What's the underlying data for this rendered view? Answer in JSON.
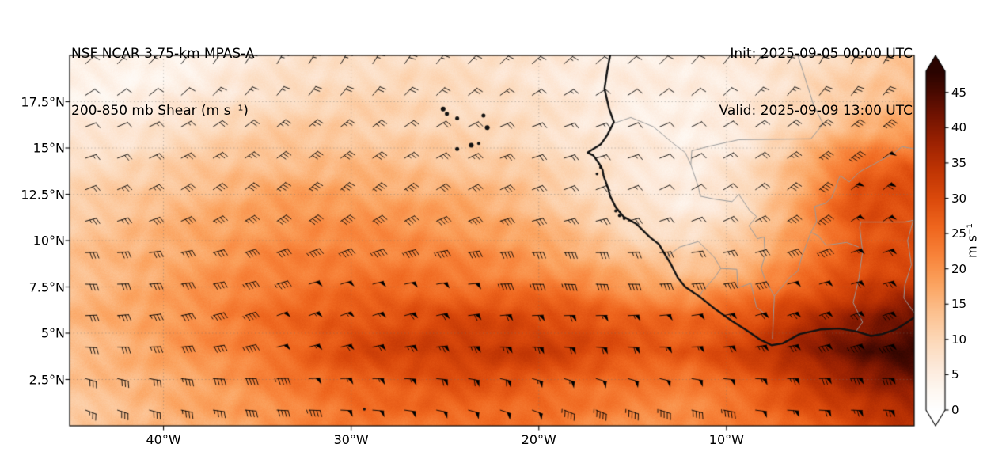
{
  "header": {
    "title_line1": "NSF NCAR 3.75-km MPAS-A",
    "title_line2": "200-850 mb Shear (m s⁻¹)",
    "init_label": "Init: 2025-09-05 00:00 UTC",
    "valid_label": "Valid: 2025-09-09 13:00 UTC"
  },
  "chart_data": {
    "type": "heatmap",
    "title": "200-850 mb Shear (m s⁻¹)",
    "xlabel": "",
    "ylabel": "",
    "lon_range": [
      -45,
      0
    ],
    "lat_range": [
      0,
      20
    ],
    "x_ticks": [
      {
        "value": -40,
        "label": "40°W"
      },
      {
        "value": -30,
        "label": "30°W"
      },
      {
        "value": -20,
        "label": "20°W"
      },
      {
        "value": -10,
        "label": "10°W"
      }
    ],
    "y_ticks": [
      {
        "value": 17.5,
        "label": "17.5°N"
      },
      {
        "value": 15,
        "label": "15°N"
      },
      {
        "value": 12.5,
        "label": "12.5°N"
      },
      {
        "value": 10,
        "label": "10°N"
      },
      {
        "value": 7.5,
        "label": "7.5°N"
      },
      {
        "value": 5,
        "label": "5°N"
      },
      {
        "value": 2.5,
        "label": "2.5°N"
      }
    ],
    "colorbar": {
      "label": "m s⁻¹",
      "ticks": [
        0,
        5,
        10,
        15,
        20,
        25,
        30,
        35,
        40,
        45
      ],
      "range": [
        0,
        48
      ],
      "extend": "both"
    },
    "colormap": [
      [
        0,
        "#ffffff"
      ],
      [
        3,
        "#fef7f0"
      ],
      [
        6,
        "#fdeadb"
      ],
      [
        10,
        "#fcd8b8"
      ],
      [
        14,
        "#fcc08e"
      ],
      [
        18,
        "#fba35f"
      ],
      [
        22,
        "#f8833a"
      ],
      [
        26,
        "#ef661e"
      ],
      [
        30,
        "#db4a0c"
      ],
      [
        34,
        "#c03504"
      ],
      [
        38,
        "#9c2202"
      ],
      [
        42,
        "#6f1301"
      ],
      [
        45,
        "#4a0a01"
      ],
      [
        48,
        "#2a0400"
      ]
    ],
    "grid": {
      "lons": [
        -45,
        -42,
        -39,
        -36,
        -33,
        -30,
        -27,
        -24,
        -21,
        -18,
        -15,
        -12,
        -9,
        -6,
        -3,
        0
      ],
      "lats": [
        20,
        18,
        16,
        14,
        12,
        10,
        8,
        6,
        4,
        2,
        0
      ],
      "values": [
        [
          4,
          3,
          4,
          6,
          7,
          8,
          9,
          8,
          7,
          6,
          5,
          5,
          6,
          8,
          11,
          13
        ],
        [
          4,
          4,
          5,
          7,
          9,
          10,
          10,
          9,
          8,
          6,
          5,
          5,
          6,
          9,
          12,
          15
        ],
        [
          6,
          6,
          9,
          11,
          12,
          12,
          11,
          10,
          9,
          7,
          5,
          4,
          6,
          11,
          16,
          18
        ],
        [
          9,
          10,
          12,
          14,
          15,
          15,
          14,
          13,
          12,
          9,
          7,
          5,
          8,
          16,
          26,
          28
        ],
        [
          11,
          13,
          15,
          17,
          19,
          19,
          18,
          17,
          15,
          11,
          7,
          5,
          9,
          18,
          30,
          30
        ],
        [
          13,
          15,
          17,
          19,
          21,
          21,
          21,
          20,
          18,
          15,
          11,
          9,
          12,
          20,
          28,
          29
        ],
        [
          14,
          16,
          18,
          21,
          23,
          24,
          24,
          23,
          22,
          20,
          17,
          15,
          18,
          24,
          30,
          32
        ],
        [
          15,
          17,
          20,
          23,
          26,
          28,
          29,
          30,
          30,
          29,
          26,
          25,
          28,
          34,
          38,
          42
        ],
        [
          14,
          16,
          19,
          22,
          26,
          30,
          32,
          33,
          33,
          31,
          29,
          28,
          32,
          38,
          44,
          47
        ],
        [
          13,
          15,
          17,
          19,
          23,
          26,
          27,
          28,
          27,
          25,
          23,
          22,
          26,
          31,
          36,
          40
        ],
        [
          12,
          14,
          16,
          18,
          21,
          23,
          24,
          25,
          24,
          22,
          21,
          20,
          23,
          27,
          31,
          34
        ]
      ]
    },
    "wind_barbs": {
      "spacing_deg": 1.7,
      "units": "m s⁻¹",
      "half_barb": 2.5,
      "full_barb": 5,
      "pennant": 25
    },
    "coastline": [
      [
        -16.2,
        20
      ],
      [
        -16.35,
        19.2
      ],
      [
        -16.5,
        18.2
      ],
      [
        -16.25,
        17.1
      ],
      [
        -16.0,
        16.4
      ],
      [
        -16.35,
        15.7
      ],
      [
        -16.7,
        15.2
      ],
      [
        -17.4,
        14.75
      ],
      [
        -17.1,
        14.6
      ],
      [
        -16.75,
        14.1
      ],
      [
        -16.6,
        13.8
      ],
      [
        -16.55,
        13.5
      ],
      [
        -16.3,
        12.8
      ],
      [
        -16.2,
        12.4
      ],
      [
        -15.9,
        11.8
      ],
      [
        -15.5,
        11.3
      ],
      [
        -14.8,
        10.9
      ],
      [
        -14.1,
        10.2
      ],
      [
        -13.6,
        9.8
      ],
      [
        -13.25,
        9.2
      ],
      [
        -13.0,
        8.8
      ],
      [
        -12.6,
        8.0
      ],
      [
        -12.2,
        7.5
      ],
      [
        -11.4,
        6.95
      ],
      [
        -10.6,
        6.3
      ],
      [
        -9.7,
        5.65
      ],
      [
        -9.0,
        5.2
      ],
      [
        -8.2,
        4.65
      ],
      [
        -7.6,
        4.35
      ],
      [
        -7.0,
        4.45
      ],
      [
        -6.1,
        4.95
      ],
      [
        -5.0,
        5.2
      ],
      [
        -4.0,
        5.25
      ],
      [
        -3.1,
        5.1
      ],
      [
        -2.3,
        4.85
      ],
      [
        -1.7,
        4.95
      ],
      [
        -1.0,
        5.2
      ],
      [
        -0.5,
        5.5
      ],
      [
        0,
        5.85
      ]
    ],
    "islands": [
      [
        -25.1,
        17.1,
        3
      ],
      [
        -24.9,
        16.85,
        2.5
      ],
      [
        -24.35,
        16.6,
        2.5
      ],
      [
        -22.95,
        16.75,
        2.5
      ],
      [
        -22.75,
        16.1,
        3
      ],
      [
        -23.6,
        15.15,
        3
      ],
      [
        -24.35,
        14.95,
        2.5
      ],
      [
        -23.2,
        15.25,
        2
      ],
      [
        -15.9,
        11.6,
        2
      ],
      [
        -15.7,
        11.35,
        2
      ],
      [
        -15.45,
        11.2,
        2
      ],
      [
        -29.3,
        0.9,
        1.8
      ],
      [
        -16.7,
        13.95,
        2
      ],
      [
        -16.9,
        13.6,
        1.8
      ]
    ],
    "borders": [
      [
        [
          -16.1,
          16.3
        ],
        [
          -15.1,
          16.65
        ],
        [
          -13.9,
          16.15
        ],
        [
          -12.9,
          15.3
        ],
        [
          -12.2,
          14.75
        ],
        [
          -11.9,
          14.1
        ],
        [
          -11.5,
          12.9
        ],
        [
          -11.4,
          12.4
        ]
      ],
      [
        [
          -6.2,
          20
        ],
        [
          -5.35,
          17.3
        ],
        [
          -4.85,
          16.3
        ],
        [
          -5.5,
          15.5
        ],
        [
          -9.35,
          15.45
        ],
        [
          -10.9,
          15.1
        ],
        [
          -11.85,
          14.85
        ],
        [
          -11.9,
          14.1
        ]
      ],
      [
        [
          -11.4,
          12.4
        ],
        [
          -10.7,
          12.25
        ],
        [
          -9.7,
          12.1
        ],
        [
          -9.35,
          12.5
        ],
        [
          -8.75,
          11.6
        ],
        [
          -8.4,
          11.3
        ],
        [
          -8.8,
          10.8
        ],
        [
          -8.35,
          10.1
        ],
        [
          -8.0,
          10.2
        ],
        [
          -7.95,
          9.2
        ],
        [
          -8.15,
          8.5
        ],
        [
          -7.95,
          7.9
        ],
        [
          -7.45,
          7.0
        ],
        [
          -7.5,
          5.9
        ],
        [
          -7.55,
          4.7
        ]
      ],
      [
        [
          -13.3,
          9.05
        ],
        [
          -12.5,
          9.65
        ],
        [
          -11.5,
          9.95
        ],
        [
          -10.65,
          9.1
        ],
        [
          -10.3,
          8.5
        ],
        [
          -10.6,
          8.05
        ],
        [
          -11.3,
          7.25
        ],
        [
          -11.45,
          6.95
        ]
      ],
      [
        [
          -10.3,
          8.5
        ],
        [
          -9.45,
          8.45
        ],
        [
          -9.4,
          7.45
        ],
        [
          -8.7,
          7.7
        ],
        [
          -8.4,
          6.4
        ],
        [
          -7.9,
          6.0
        ]
      ],
      [
        [
          -3.1,
          5.1
        ],
        [
          -2.75,
          5.6
        ],
        [
          -3.25,
          6.65
        ],
        [
          -2.95,
          7.95
        ],
        [
          -2.75,
          9.4
        ],
        [
          -2.9,
          10.7
        ],
        [
          -2.85,
          11.0
        ],
        [
          -1.6,
          11.0
        ],
        [
          -0.5,
          11.0
        ],
        [
          -0.05,
          11.1
        ]
      ],
      [
        [
          0.0,
          6.1
        ],
        [
          -0.55,
          6.9
        ],
        [
          -0.5,
          7.6
        ],
        [
          -0.15,
          8.7
        ],
        [
          -0.35,
          10.0
        ],
        [
          -0.05,
          11.1
        ]
      ],
      [
        [
          -5.5,
          10.45
        ],
        [
          -5.2,
          11.0
        ],
        [
          -5.3,
          11.85
        ],
        [
          -4.75,
          12.0
        ],
        [
          -4.4,
          12.3
        ],
        [
          -4.25,
          12.7
        ],
        [
          -3.95,
          13.5
        ],
        [
          -3.45,
          13.17
        ],
        [
          -2.9,
          13.72
        ],
        [
          -2.1,
          14.15
        ],
        [
          -1.0,
          14.78
        ],
        [
          -0.65,
          15.08
        ],
        [
          0,
          14.95
        ]
      ],
      [
        [
          -7.45,
          7.0
        ],
        [
          -6.65,
          8.0
        ],
        [
          -6.2,
          8.35
        ],
        [
          -6.0,
          9.1
        ],
        [
          -5.5,
          10.45
        ],
        [
          -5.1,
          10.25
        ],
        [
          -4.7,
          9.75
        ],
        [
          -3.6,
          9.9
        ],
        [
          -2.95,
          9.65
        ]
      ]
    ]
  }
}
